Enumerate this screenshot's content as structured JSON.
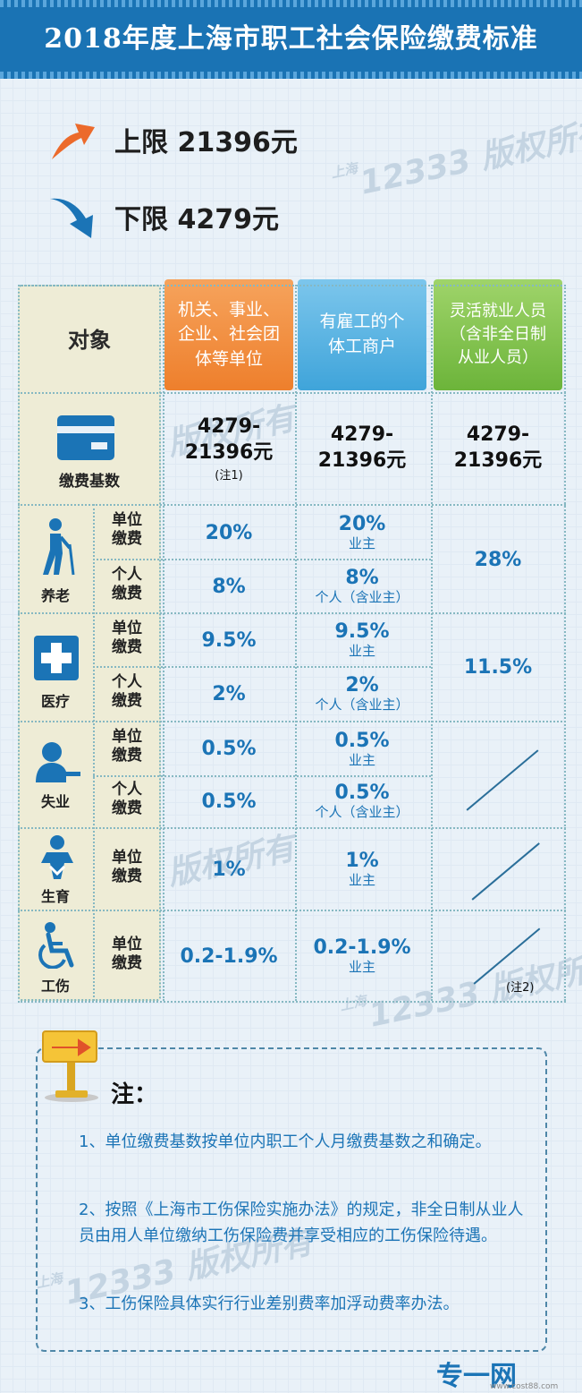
{
  "title": "2018年度上海市职工社会保险缴费标准",
  "upper_limit": "上限 21396元",
  "lower_limit": "下限 4279元",
  "watermark": {
    "prefix": "上海",
    "text": "12333 版权所有"
  },
  "table": {
    "object_label": "对象",
    "headers": [
      "机关、事业、企业、社会团体等单位",
      "有雇工的个体工商户",
      "灵活就业人员（含非全日制从业人员）"
    ],
    "base": {
      "label": "缴费基数",
      "col1": "4279-21396元",
      "col1_note": "(注1)",
      "col2": "4279-21396元",
      "col3": "4279-21396元"
    },
    "unit_pay": "单位缴费",
    "personal_pay": "个人缴费",
    "categories": {
      "pension": "养老",
      "medical": "医疗",
      "unemployment": "失业",
      "maternity": "生育",
      "injury": "工伤"
    },
    "employer_label": "业主",
    "individual_label": "个人（含业主）",
    "pension": {
      "unit1": "20%",
      "unit2": "20%",
      "pers1": "8%",
      "pers2": "8%",
      "flex": "28%"
    },
    "medical": {
      "unit1": "9.5%",
      "unit2": "9.5%",
      "pers1": "2%",
      "pers2": "2%",
      "flex": "11.5%"
    },
    "unemployment": {
      "unit1": "0.5%",
      "unit2": "0.5%",
      "pers1": "0.5%",
      "pers2": "0.5%"
    },
    "maternity": {
      "unit1": "1%",
      "unit2": "1%"
    },
    "injury": {
      "unit1": "0.2-1.9%",
      "unit2": "0.2-1.9%",
      "flex_note": "(注2)"
    }
  },
  "notes": {
    "title": "注：",
    "items": [
      "1、单位缴费基数按单位内职工个人月缴费基数之和确定。",
      "2、按照《上海市工伤保险实施办法》的规定，非全日制从业人员由用人单位缴纳工伤保险费并享受相应的工伤保险待遇。",
      "3、工伤保险具体实行行业差别费率加浮动费率办法。"
    ]
  },
  "footer_logo": "专一网",
  "footer_url": "www.cost88.com",
  "colors": {
    "title_bg": "#1a73b4",
    "accent_blue": "#1b74b6",
    "orange": "#ee7f2c",
    "green": "#6cb43a",
    "panel": "#eeecd6"
  }
}
